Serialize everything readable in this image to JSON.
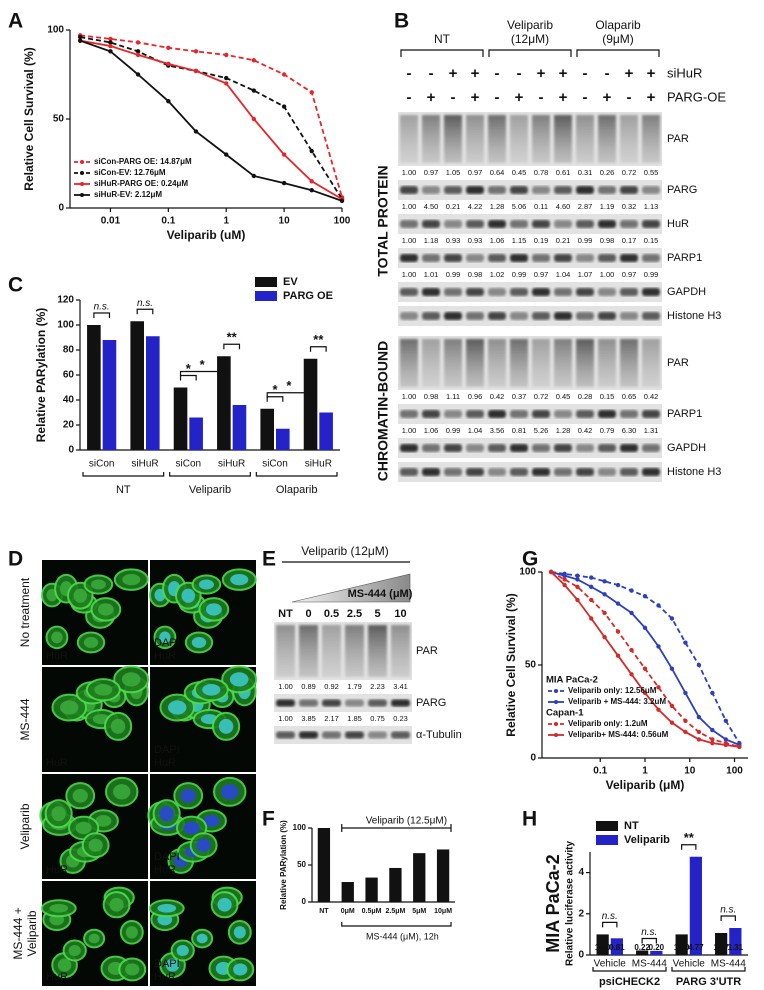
{
  "panel_labels": [
    "A",
    "B",
    "C",
    "D",
    "E",
    "F",
    "G",
    "H"
  ],
  "chart_data": [
    {
      "type": "line",
      "ylabel": "Relative  Cell Survival (%)",
      "xlabel": "Veliparib (uM)",
      "log_x": true,
      "x": [
        0.003,
        0.01,
        0.03,
        0.1,
        0.3,
        1,
        3,
        10,
        30,
        100
      ],
      "xlim": [
        0.002,
        100
      ],
      "xticks": [
        0.01,
        0.1,
        1,
        10,
        100
      ],
      "ylim": [
        0,
        100
      ],
      "yticks": [
        0,
        50,
        100
      ],
      "series": [
        {
          "name": "siCon-PARG OE: 14.87μM",
          "color": "#e8262a",
          "dash": true,
          "values": [
            97,
            95,
            93,
            90,
            88,
            86,
            83,
            75,
            65,
            6
          ]
        },
        {
          "name": "siCon-EV: 12.76μM",
          "color": "#111111",
          "dash": true,
          "values": [
            96,
            93,
            88,
            80,
            77,
            73,
            66,
            57,
            32,
            5
          ]
        },
        {
          "name": "siHuR-PARG OE: 0.24μM",
          "color": "#e8262a",
          "dash": false,
          "values": [
            94,
            91,
            86,
            81,
            77,
            70,
            50,
            30,
            15,
            5
          ]
        },
        {
          "name": "siHuR-EV: 2.12μM",
          "color": "#111111",
          "dash": false,
          "values": [
            94,
            88,
            75,
            60,
            43,
            30,
            18,
            14,
            10,
            4
          ]
        }
      ]
    },
    {
      "type": "bar",
      "ylabel": "Relative PARylation (%)",
      "categories": [
        "siCon",
        "siHuR",
        "siCon",
        "siHuR",
        "siCon",
        "siHuR"
      ],
      "groups": [
        "NT",
        "Veliparib",
        "Olaparib"
      ],
      "ylim": [
        0,
        120
      ],
      "yticks": [
        0,
        20,
        40,
        60,
        80,
        100,
        120
      ],
      "series": [
        {
          "name": "EV",
          "color": "#111111",
          "values": [
            100,
            103,
            50,
            75,
            33,
            73
          ]
        },
        {
          "name": "PARG OE",
          "color": "#2323c8",
          "values": [
            88,
            91,
            26,
            36,
            17,
            30
          ]
        }
      ],
      "significance": [
        "n.s.",
        "n.s.",
        "*",
        "**",
        "*",
        "**"
      ],
      "cross_significance": [
        "*",
        "*"
      ]
    },
    {
      "type": "bar",
      "ylabel": "Relative PARylation (%)",
      "categories": [
        "NT",
        "0μM",
        "0.5μM",
        "2.5μM",
        "5μM",
        "10μM"
      ],
      "values": [
        100,
        27,
        33,
        46,
        66,
        71
      ],
      "color": "#111111",
      "ylim": [
        0,
        100
      ],
      "yticks": [
        0,
        50,
        100
      ],
      "annotations": [
        "Veliparib (12.5μM)",
        "MS-444 (μM), 12h"
      ]
    },
    {
      "type": "line",
      "ylabel": "Relative  Cell Survival (%)",
      "xlabel": "Veliparib (μM)",
      "log_x": true,
      "x": [
        0.008,
        0.016,
        0.031,
        0.063,
        0.125,
        0.25,
        0.5,
        1,
        2,
        4,
        8,
        16,
        32,
        64,
        128
      ],
      "xlim": [
        0.005,
        200
      ],
      "xticks": [
        0.1,
        1,
        10,
        100
      ],
      "ylim": [
        0,
        100
      ],
      "yticks": [
        0,
        50,
        100
      ],
      "legend_groups": [
        {
          "name": "MIA PaCa-2",
          "color": "#2b3fbf"
        },
        {
          "name": "Capan-1",
          "color": "#d42a2a"
        }
      ],
      "series": [
        {
          "name": "Veliparib only: 12.56uM",
          "color": "#2b3fbf",
          "dash": true,
          "values": [
            100,
            99,
            98,
            97,
            95,
            93,
            90,
            87,
            82,
            75,
            62,
            50,
            35,
            20,
            8
          ]
        },
        {
          "name": "Veliparib + MS-444: 3.2uM",
          "color": "#2b3fbf",
          "dash": false,
          "values": [
            100,
            98,
            96,
            92,
            88,
            83,
            78,
            70,
            60,
            48,
            35,
            22,
            15,
            10,
            7
          ]
        },
        {
          "name": "Veliparib only: 1.2uM",
          "color": "#d42a2a",
          "dash": true,
          "values": [
            100,
            96,
            92,
            85,
            78,
            68,
            58,
            48,
            38,
            28,
            20,
            14,
            10,
            8,
            6
          ]
        },
        {
          "name": "Veliparib+ MS-444: 0.56uM",
          "color": "#d42a2a",
          "dash": false,
          "values": [
            100,
            93,
            85,
            75,
            65,
            55,
            45,
            35,
            26,
            19,
            14,
            10,
            8,
            7,
            6
          ]
        }
      ]
    },
    {
      "type": "bar",
      "title": "MIA PaCa-2",
      "ylabel": "Relative luciferase activity",
      "categories": [
        "Vehicle",
        "MS-444",
        "Vehicle",
        "MS-444"
      ],
      "groups": [
        "psiCHECK2",
        "PARG 3'UTR"
      ],
      "ylim": [
        0,
        5
      ],
      "yticks": [
        0,
        2,
        4
      ],
      "series": [
        {
          "name": "NT",
          "color": "#111111",
          "values": [
            1.0,
            0.22,
            1.0,
            1.07
          ],
          "value_labels": [
            "1.00",
            "0.22",
            "1.00",
            "1.07"
          ]
        },
        {
          "name": "Veliparib",
          "color": "#2323c8",
          "values": [
            0.81,
            0.2,
            4.77,
            1.31
          ],
          "value_labels": [
            "0.81",
            "0.20",
            "4.77",
            "1.31"
          ]
        }
      ],
      "significance": [
        "n.s.",
        "n.s.",
        "**",
        "n.s."
      ]
    }
  ],
  "blot_b": {
    "conditions": [
      [
        "NT"
      ],
      [
        "Veliparib",
        "(12μM)"
      ],
      [
        "Olaparib",
        "(9μM)"
      ]
    ],
    "treatments": [
      {
        "name": "siHuR",
        "signs": [
          "-",
          "-",
          "+",
          "+",
          "-",
          "-",
          "+",
          "+",
          "-",
          "-",
          "+",
          "+"
        ]
      },
      {
        "name": "PARG-OE",
        "signs": [
          "-",
          "+",
          "-",
          "+",
          "-",
          "+",
          "-",
          "+",
          "-",
          "+",
          "-",
          "+"
        ]
      }
    ],
    "sections": [
      {
        "title": "TOTAL PROTEIN",
        "rows": [
          {
            "name": "PAR",
            "quant": [
              "1.00",
              "0.97",
              "1.05",
              "0.97",
              "0.64",
              "0.45",
              "0.78",
              "0.61",
              "0.31",
              "0.26",
              "0.72",
              "0.55"
            ]
          },
          {
            "name": "PARG",
            "quant": [
              "1.00",
              "4.50",
              "0.21",
              "4.22",
              "1.28",
              "5.06",
              "0.11",
              "4.60",
              "2.87",
              "1.19",
              "0.32",
              "1.13"
            ]
          },
          {
            "name": "HuR",
            "quant": [
              "1.00",
              "1.18",
              "0.93",
              "0.93",
              "1.06",
              "1.15",
              "0.19",
              "0.21",
              "0.99",
              "0.98",
              "0.17",
              "0.15"
            ]
          },
          {
            "name": "PARP1",
            "quant": [
              "1.00",
              "1.01",
              "0.99",
              "0.98",
              "1.02",
              "0.99",
              "0.97",
              "1.04",
              "1.07",
              "1.00",
              "0.97",
              "0.99"
            ]
          },
          {
            "name": "GAPDH"
          },
          {
            "name": "Histone H3"
          }
        ]
      },
      {
        "title": "CHROMATIN-BOUND",
        "rows": [
          {
            "name": "PAR",
            "quant": [
              "1.00",
              "0.98",
              "1.11",
              "0.96",
              "0.42",
              "0.37",
              "0.72",
              "0.45",
              "0.28",
              "0.15",
              "0.65",
              "0.42"
            ]
          },
          {
            "name": "PARP1",
            "quant": [
              "1.00",
              "1.06",
              "0.99",
              "1.04",
              "3.56",
              "0.81",
              "5.26",
              "1.28",
              "0.42",
              "0.79",
              "6.30",
              "1.31"
            ]
          },
          {
            "name": "GAPDH"
          },
          {
            "name": "Histone H3"
          }
        ]
      }
    ]
  },
  "images_d": {
    "rows": [
      [
        "No treatment"
      ],
      [
        "MS-444"
      ],
      [
        "Veliparib"
      ],
      [
        "MS-444 +",
        "Veliparib"
      ]
    ],
    "channel": "HuR",
    "merge": [
      "DAPI",
      "HuR"
    ]
  },
  "blot_e": {
    "treatment": "Veliparib (12μM)",
    "gradient": "MS-444 (μM)",
    "lanes": [
      "NT",
      "0",
      "0.5",
      "2.5",
      "5",
      "10"
    ],
    "rows": [
      {
        "name": "PAR",
        "quant": [
          "1.00",
          "0.89",
          "0.92",
          "1.79",
          "2.23",
          "3.41"
        ]
      },
      {
        "name": "PARG",
        "quant": [
          "1.00",
          "3.85",
          "2.17",
          "1.85",
          "0.75",
          "0.23"
        ]
      },
      {
        "name": "α-Tubulin"
      }
    ]
  }
}
